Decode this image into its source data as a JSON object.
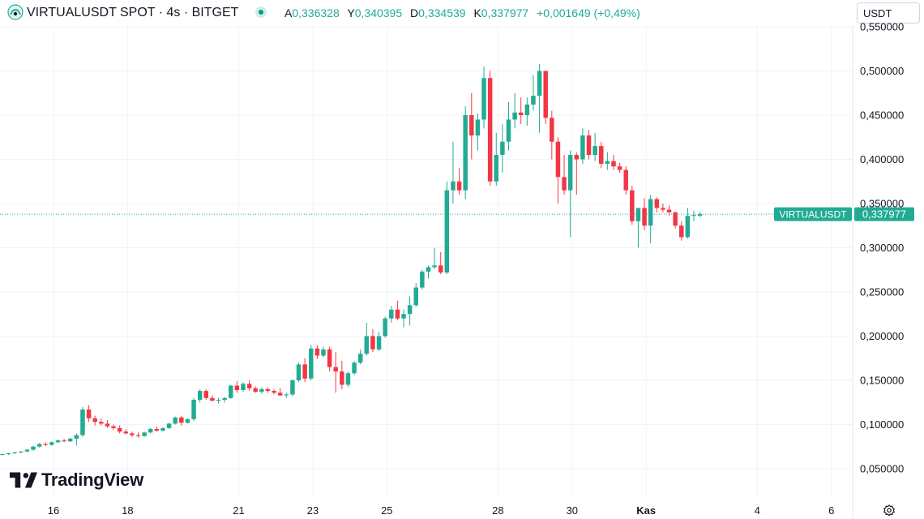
{
  "header": {
    "symbol_title": "VIRTUALUSDT SPOT · 4s · BITGET",
    "ohlc": [
      {
        "label": "A",
        "value": "0,336328"
      },
      {
        "label": "Y",
        "value": "0,340395"
      },
      {
        "label": "D",
        "value": "0,334539"
      },
      {
        "label": "K",
        "value": "0,337977"
      }
    ],
    "change": "+0,001649 (+0,49%)",
    "currency": "USDT"
  },
  "price_label": {
    "symbol": "VIRTUALUSDT",
    "value": "0,337977"
  },
  "branding": {
    "logo_text": "TradingView"
  },
  "colors": {
    "up": "#22ab94",
    "down": "#f23645",
    "price_line": "#22ab94",
    "grid": "#f0f3fa"
  },
  "icons": {
    "symbol": "virtual-coin-icon",
    "settings": "gear-icon"
  },
  "chart_data": {
    "type": "candlestick",
    "title": "VIRTUALUSDT SPOT · 4s · BITGET",
    "ylim": [
      0.03,
      0.56
    ],
    "y_ticks": [
      {
        "value": 0.05,
        "label": "0,050000"
      },
      {
        "value": 0.1,
        "label": "0,100000"
      },
      {
        "value": 0.15,
        "label": "0,150000"
      },
      {
        "value": 0.2,
        "label": "0,200000"
      },
      {
        "value": 0.25,
        "label": "0,250000"
      },
      {
        "value": 0.3,
        "label": "0,300000"
      },
      {
        "value": 0.35,
        "label": "0,350000"
      },
      {
        "value": 0.4,
        "label": "0,400000"
      },
      {
        "value": 0.45,
        "label": "0,450000"
      },
      {
        "value": 0.5,
        "label": "0,500000"
      },
      {
        "value": 0.55,
        "label": "0,550000"
      }
    ],
    "x_ticks": [
      {
        "day": 16,
        "label": "16",
        "bold": false
      },
      {
        "day": 18,
        "label": "18",
        "bold": false
      },
      {
        "day": 21,
        "label": "21",
        "bold": false
      },
      {
        "day": 23,
        "label": "23",
        "bold": false
      },
      {
        "day": 25,
        "label": "25",
        "bold": false
      },
      {
        "day": 28,
        "label": "28",
        "bold": false
      },
      {
        "day": 30,
        "label": "30",
        "bold": false
      },
      {
        "day": 32,
        "label": "Kas",
        "bold": true
      },
      {
        "day": 35,
        "label": "4",
        "bold": false
      },
      {
        "day": 37,
        "label": "6",
        "bold": false
      }
    ],
    "x_domain": {
      "start_day": 14.62,
      "candles_per_day": 6
    },
    "last_price": 0.337977,
    "candles": [
      [
        0.066,
        0.067,
        0.065,
        0.0665
      ],
      [
        0.0665,
        0.068,
        0.0655,
        0.0675
      ],
      [
        0.0675,
        0.069,
        0.0665,
        0.0685
      ],
      [
        0.0685,
        0.07,
        0.0675,
        0.0695
      ],
      [
        0.0695,
        0.0725,
        0.0685,
        0.0715
      ],
      [
        0.0715,
        0.076,
        0.0705,
        0.075
      ],
      [
        0.075,
        0.079,
        0.074,
        0.078
      ],
      [
        0.078,
        0.08,
        0.0755,
        0.077
      ],
      [
        0.077,
        0.081,
        0.076,
        0.08
      ],
      [
        0.08,
        0.083,
        0.079,
        0.082
      ],
      [
        0.082,
        0.084,
        0.08,
        0.081
      ],
      [
        0.081,
        0.085,
        0.08,
        0.084
      ],
      [
        0.084,
        0.09,
        0.076,
        0.088
      ],
      [
        0.088,
        0.12,
        0.086,
        0.117
      ],
      [
        0.117,
        0.122,
        0.103,
        0.107
      ],
      [
        0.107,
        0.11,
        0.099,
        0.103
      ],
      [
        0.103,
        0.107,
        0.099,
        0.101
      ],
      [
        0.101,
        0.105,
        0.096,
        0.098
      ],
      [
        0.098,
        0.1,
        0.094,
        0.096
      ],
      [
        0.096,
        0.099,
        0.09,
        0.092
      ],
      [
        0.092,
        0.095,
        0.089,
        0.09
      ],
      [
        0.09,
        0.092,
        0.086,
        0.088
      ],
      [
        0.088,
        0.091,
        0.085,
        0.087
      ],
      [
        0.087,
        0.092,
        0.086,
        0.091
      ],
      [
        0.091,
        0.096,
        0.09,
        0.095
      ],
      [
        0.095,
        0.098,
        0.092,
        0.093
      ],
      [
        0.093,
        0.097,
        0.092,
        0.096
      ],
      [
        0.096,
        0.102,
        0.095,
        0.101
      ],
      [
        0.101,
        0.109,
        0.1,
        0.108
      ],
      [
        0.108,
        0.11,
        0.099,
        0.102
      ],
      [
        0.102,
        0.107,
        0.101,
        0.106
      ],
      [
        0.106,
        0.13,
        0.104,
        0.128
      ],
      [
        0.128,
        0.14,
        0.125,
        0.138
      ],
      [
        0.138,
        0.14,
        0.128,
        0.13
      ],
      [
        0.13,
        0.133,
        0.126,
        0.127
      ],
      [
        0.127,
        0.13,
        0.124,
        0.128
      ],
      [
        0.128,
        0.131,
        0.125,
        0.13
      ],
      [
        0.13,
        0.145,
        0.129,
        0.144
      ],
      [
        0.144,
        0.149,
        0.136,
        0.139
      ],
      [
        0.139,
        0.148,
        0.137,
        0.146
      ],
      [
        0.146,
        0.15,
        0.138,
        0.141
      ],
      [
        0.141,
        0.143,
        0.136,
        0.137
      ],
      [
        0.137,
        0.142,
        0.135,
        0.14
      ],
      [
        0.14,
        0.142,
        0.136,
        0.138
      ],
      [
        0.138,
        0.14,
        0.134,
        0.136
      ],
      [
        0.136,
        0.141,
        0.132,
        0.133
      ],
      [
        0.133,
        0.136,
        0.13,
        0.134
      ],
      [
        0.134,
        0.151,
        0.132,
        0.15
      ],
      [
        0.15,
        0.17,
        0.148,
        0.168
      ],
      [
        0.168,
        0.175,
        0.148,
        0.152
      ],
      [
        0.152,
        0.19,
        0.15,
        0.186
      ],
      [
        0.186,
        0.19,
        0.174,
        0.178
      ],
      [
        0.178,
        0.188,
        0.176,
        0.185
      ],
      [
        0.185,
        0.188,
        0.16,
        0.165
      ],
      [
        0.165,
        0.182,
        0.136,
        0.16
      ],
      [
        0.16,
        0.172,
        0.14,
        0.145
      ],
      [
        0.145,
        0.16,
        0.142,
        0.158
      ],
      [
        0.158,
        0.172,
        0.156,
        0.17
      ],
      [
        0.17,
        0.185,
        0.168,
        0.18
      ],
      [
        0.18,
        0.215,
        0.178,
        0.2
      ],
      [
        0.2,
        0.208,
        0.182,
        0.185
      ],
      [
        0.185,
        0.205,
        0.183,
        0.2
      ],
      [
        0.2,
        0.222,
        0.198,
        0.22
      ],
      [
        0.22,
        0.234,
        0.215,
        0.23
      ],
      [
        0.23,
        0.24,
        0.218,
        0.22
      ],
      [
        0.22,
        0.23,
        0.21,
        0.225
      ],
      [
        0.225,
        0.245,
        0.212,
        0.235
      ],
      [
        0.235,
        0.26,
        0.233,
        0.255
      ],
      [
        0.255,
        0.275,
        0.253,
        0.273
      ],
      [
        0.273,
        0.28,
        0.265,
        0.278
      ],
      [
        0.278,
        0.3,
        0.276,
        0.28
      ],
      [
        0.28,
        0.295,
        0.27,
        0.272
      ],
      [
        0.272,
        0.375,
        0.27,
        0.365
      ],
      [
        0.365,
        0.42,
        0.35,
        0.375
      ],
      [
        0.375,
        0.39,
        0.36,
        0.365
      ],
      [
        0.365,
        0.46,
        0.355,
        0.45
      ],
      [
        0.45,
        0.475,
        0.4,
        0.427
      ],
      [
        0.427,
        0.452,
        0.41,
        0.445
      ],
      [
        0.445,
        0.505,
        0.435,
        0.492
      ],
      [
        0.492,
        0.5,
        0.37,
        0.375
      ],
      [
        0.375,
        0.43,
        0.37,
        0.405
      ],
      [
        0.405,
        0.44,
        0.385,
        0.42
      ],
      [
        0.42,
        0.465,
        0.41,
        0.445
      ],
      [
        0.445,
        0.475,
        0.435,
        0.453
      ],
      [
        0.453,
        0.47,
        0.44,
        0.45
      ],
      [
        0.45,
        0.47,
        0.438,
        0.462
      ],
      [
        0.462,
        0.495,
        0.455,
        0.472
      ],
      [
        0.472,
        0.508,
        0.43,
        0.5
      ],
      [
        0.5,
        0.5,
        0.44,
        0.447
      ],
      [
        0.447,
        0.455,
        0.4,
        0.42
      ],
      [
        0.42,
        0.425,
        0.35,
        0.38
      ],
      [
        0.38,
        0.405,
        0.36,
        0.365
      ],
      [
        0.365,
        0.41,
        0.312,
        0.405
      ],
      [
        0.405,
        0.408,
        0.36,
        0.4
      ],
      [
        0.4,
        0.435,
        0.395,
        0.427
      ],
      [
        0.427,
        0.433,
        0.4,
        0.405
      ],
      [
        0.405,
        0.43,
        0.398,
        0.415
      ],
      [
        0.415,
        0.42,
        0.39,
        0.395
      ],
      [
        0.395,
        0.408,
        0.388,
        0.398
      ],
      [
        0.398,
        0.405,
        0.388,
        0.392
      ],
      [
        0.392,
        0.396,
        0.385,
        0.388
      ],
      [
        0.388,
        0.392,
        0.36,
        0.365
      ],
      [
        0.365,
        0.37,
        0.326,
        0.33
      ],
      [
        0.33,
        0.345,
        0.3,
        0.345
      ],
      [
        0.345,
        0.356,
        0.32,
        0.325
      ],
      [
        0.325,
        0.36,
        0.305,
        0.355
      ],
      [
        0.355,
        0.357,
        0.34,
        0.345
      ],
      [
        0.345,
        0.35,
        0.34,
        0.343
      ],
      [
        0.343,
        0.348,
        0.336,
        0.34
      ],
      [
        0.34,
        0.341,
        0.322,
        0.325
      ],
      [
        0.325,
        0.33,
        0.308,
        0.312
      ],
      [
        0.312,
        0.345,
        0.31,
        0.336
      ],
      [
        0.336,
        0.342,
        0.33,
        0.337
      ],
      [
        0.3363,
        0.3404,
        0.3345,
        0.338
      ]
    ]
  }
}
